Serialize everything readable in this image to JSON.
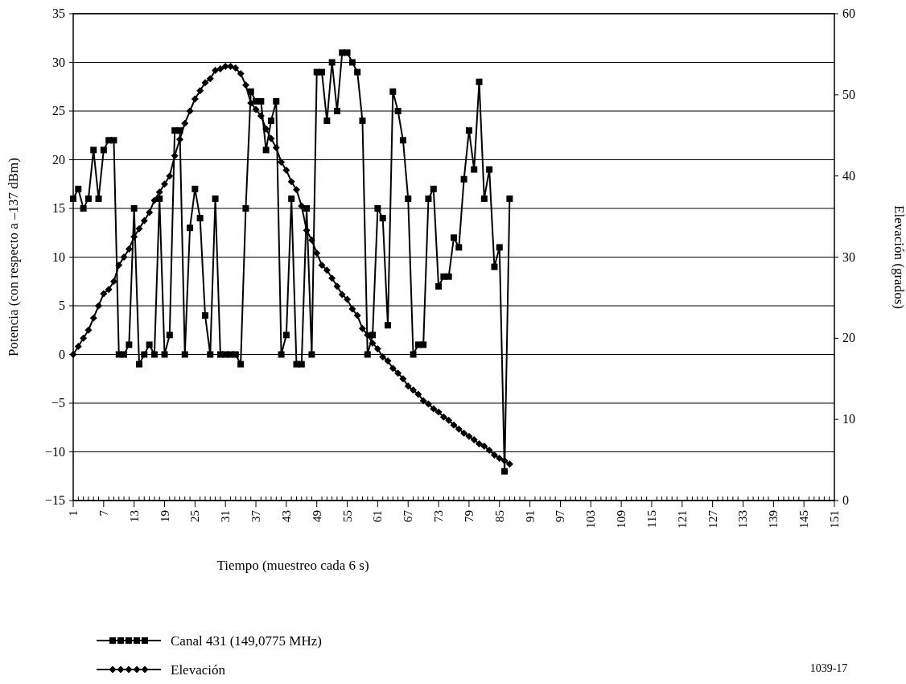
{
  "chart_data": {
    "type": "line",
    "xlabel": "Tiempo (muestreo cada 6 s)",
    "ylabel": "Potencia (con respecto a –137 dBm)",
    "y2label": "Elevación (grados)",
    "x": [
      1,
      2,
      3,
      4,
      5,
      6,
      7,
      8,
      9,
      10,
      11,
      12,
      13,
      14,
      15,
      16,
      17,
      18,
      19,
      20,
      21,
      22,
      23,
      24,
      25,
      26,
      27,
      28,
      29,
      30,
      31,
      32,
      33,
      34,
      35,
      36,
      37,
      38,
      39,
      40,
      41,
      42,
      43,
      44,
      45,
      46,
      47,
      48,
      49,
      50,
      51,
      52,
      53,
      54,
      55,
      56,
      57,
      58,
      59,
      60,
      61,
      62,
      63,
      64,
      65,
      66,
      67,
      68,
      69,
      70,
      71,
      72,
      73,
      74,
      75,
      76,
      77,
      78,
      79,
      80,
      81,
      82,
      83,
      84,
      85,
      86,
      87
    ],
    "series": [
      {
        "name": "Canal 431 (149,0775 MHz)",
        "color": "#000000",
        "marker": "square",
        "values": [
          16,
          17,
          15,
          16,
          21,
          16,
          21,
          22,
          22,
          0,
          0,
          1,
          15,
          -1,
          0,
          1,
          0,
          16,
          0,
          2,
          23,
          23,
          0,
          13,
          17,
          14,
          4,
          0,
          16,
          0,
          0,
          0,
          0,
          -1,
          15,
          27,
          26,
          26,
          21,
          24,
          26,
          0,
          2,
          16,
          -1,
          -1,
          15,
          0,
          29,
          29,
          24,
          30,
          25,
          31,
          31,
          30,
          29,
          24,
          0,
          2,
          15,
          14,
          3,
          27,
          25,
          22,
          16,
          0,
          1,
          1,
          16,
          17,
          7,
          8,
          8,
          12,
          11,
          18,
          23,
          19,
          28,
          16,
          19,
          9,
          11,
          -12,
          16
        ]
      },
      {
        "name": "Elevación",
        "color": "#000000",
        "marker": "diamond",
        "axis": "y2",
        "values": [
          18,
          19,
          20,
          21,
          22.5,
          24,
          25.5,
          26,
          27,
          29,
          30,
          31,
          32.5,
          33.5,
          34.5,
          35.5,
          37,
          38,
          39,
          40,
          42.5,
          44.5,
          46.5,
          48,
          49.5,
          50.5,
          51.5,
          52,
          53,
          53.2,
          53.5,
          53.5,
          53.3,
          52.6,
          51.2,
          49,
          48.2,
          47.4,
          45.8,
          44.6,
          43.5,
          41.7,
          40.7,
          39.3,
          38.3,
          36.3,
          33.3,
          32.1,
          30.5,
          29,
          28.4,
          27.4,
          26.4,
          25.4,
          24.8,
          23.6,
          22.8,
          21.2,
          20.4,
          19.4,
          18.7,
          17.7,
          17.2,
          16.3,
          15.7,
          15,
          14.1,
          13.6,
          13.1,
          12.3,
          11.9,
          11.3,
          10.9,
          10.3,
          9.9,
          9.3,
          8.8,
          8.3,
          7.9,
          7.5,
          7,
          6.7,
          6.2,
          5.6,
          5.2,
          4.9,
          4.5
        ]
      }
    ],
    "xlim": [
      1,
      151
    ],
    "xticks": [
      1,
      {
        "value": 2,
        "label": null
      },
      {
        "value": 3,
        "label": null
      },
      {
        "value": 4,
        "label": null
      },
      {
        "value": 5,
        "label": null
      },
      {
        "value": 6,
        "label": null
      },
      7,
      {
        "value": 8,
        "label": null
      },
      {
        "value": 9,
        "label": null
      },
      {
        "value": 10,
        "label": null
      },
      {
        "value": 11,
        "label": null
      },
      {
        "value": 12,
        "label": null
      },
      13,
      {
        "value": 14,
        "label": null
      },
      {
        "value": 15,
        "label": null
      },
      {
        "value": 16,
        "label": null
      },
      {
        "value": 17,
        "label": null
      },
      {
        "value": 18,
        "label": null
      },
      19,
      {
        "value": 20,
        "label": null
      },
      {
        "value": 21,
        "label": null
      },
      {
        "value": 22,
        "label": null
      },
      {
        "value": 23,
        "label": null
      },
      {
        "value": 24,
        "label": null
      },
      25,
      {
        "value": 26,
        "label": null
      },
      {
        "value": 27,
        "label": null
      },
      {
        "value": 28,
        "label": null
      },
      {
        "value": 29,
        "label": null
      },
      {
        "value": 30,
        "label": null
      },
      31,
      {
        "value": 32,
        "label": null
      },
      {
        "value": 33,
        "label": null
      },
      {
        "value": 34,
        "label": null
      },
      {
        "value": 35,
        "label": null
      },
      {
        "value": 36,
        "label": null
      },
      37,
      {
        "value": 38,
        "label": null
      },
      {
        "value": 39,
        "label": null
      },
      {
        "value": 40,
        "label": null
      },
      {
        "value": 41,
        "label": null
      },
      {
        "value": 42,
        "label": null
      },
      43,
      {
        "value": 44,
        "label": null
      },
      {
        "value": 45,
        "label": null
      },
      {
        "value": 46,
        "label": null
      },
      {
        "value": 47,
        "label": null
      },
      {
        "value": 48,
        "label": null
      },
      49,
      {
        "value": 50,
        "label": null
      },
      {
        "value": 51,
        "label": null
      },
      {
        "value": 52,
        "label": null
      },
      {
        "value": 53,
        "label": null
      },
      {
        "value": 54,
        "label": null
      },
      55,
      {
        "value": 56,
        "label": null
      },
      {
        "value": 57,
        "label": null
      },
      {
        "value": 58,
        "label": null
      },
      {
        "value": 59,
        "label": null
      },
      {
        "value": 60,
        "label": null
      },
      61,
      {
        "value": 62,
        "label": null
      },
      {
        "value": 63,
        "label": null
      },
      {
        "value": 64,
        "label": null
      },
      {
        "value": 65,
        "label": null
      },
      {
        "value": 66,
        "label": null
      },
      67,
      {
        "value": 68,
        "label": null
      },
      {
        "value": 69,
        "label": null
      },
      {
        "value": 70,
        "label": null
      },
      {
        "value": 71,
        "label": null
      },
      {
        "value": 72,
        "label": null
      },
      73,
      {
        "value": 74,
        "label": null
      },
      {
        "value": 75,
        "label": null
      },
      {
        "value": 76,
        "label": null
      },
      {
        "value": 77,
        "label": null
      },
      {
        "value": 78,
        "label": null
      },
      79,
      {
        "value": 80,
        "label": null
      },
      {
        "value": 81,
        "label": null
      },
      {
        "value": 82,
        "label": null
      },
      {
        "value": 83,
        "label": null
      },
      {
        "value": 84,
        "label": null
      },
      85,
      {
        "value": 86,
        "label": null
      },
      {
        "value": 87,
        "label": null
      },
      {
        "value": 88,
        "label": null
      },
      {
        "value": 89,
        "label": null
      },
      {
        "value": 90,
        "label": null
      },
      91,
      {
        "value": 92,
        "label": null
      },
      {
        "value": 93,
        "label": null
      },
      {
        "value": 94,
        "label": null
      },
      {
        "value": 95,
        "label": null
      },
      {
        "value": 96,
        "label": null
      },
      97,
      {
        "value": 98,
        "label": null
      },
      {
        "value": 99,
        "label": null
      },
      {
        "value": 100,
        "label": null
      },
      {
        "value": 101,
        "label": null
      },
      {
        "value": 102,
        "label": null
      },
      103,
      {
        "value": 104,
        "label": null
      },
      {
        "value": 105,
        "label": null
      },
      {
        "value": 106,
        "label": null
      },
      {
        "value": 107,
        "label": null
      },
      {
        "value": 108,
        "label": null
      },
      109,
      {
        "value": 110,
        "label": null
      },
      {
        "value": 111,
        "label": null
      },
      {
        "value": 112,
        "label": null
      },
      {
        "value": 113,
        "label": null
      },
      {
        "value": 114,
        "label": null
      },
      115,
      {
        "value": 116,
        "label": null
      },
      {
        "value": 117,
        "label": null
      },
      {
        "value": 118,
        "label": null
      },
      {
        "value": 119,
        "label": null
      },
      {
        "value": 120,
        "label": null
      },
      121,
      {
        "value": 122,
        "label": null
      },
      {
        "value": 123,
        "label": null
      },
      {
        "value": 124,
        "label": null
      },
      {
        "value": 125,
        "label": null
      },
      {
        "value": 126,
        "label": null
      },
      127,
      {
        "value": 128,
        "label": null
      },
      {
        "value": 129,
        "label": null
      },
      {
        "value": 130,
        "label": null
      },
      {
        "value": 131,
        "label": null
      },
      {
        "value": 132,
        "label": null
      },
      133,
      {
        "value": 134,
        "label": null
      },
      {
        "value": 135,
        "label": null
      },
      {
        "value": 136,
        "label": null
      },
      {
        "value": 137,
        "label": null
      },
      {
        "value": 138,
        "label": null
      },
      139,
      {
        "value": 140,
        "label": null
      },
      {
        "value": 141,
        "label": null
      },
      {
        "value": 142,
        "label": null
      },
      {
        "value": 143,
        "label": null
      },
      {
        "value": 144,
        "label": null
      },
      145,
      {
        "value": 146,
        "label": null
      },
      {
        "value": 147,
        "label": null
      },
      {
        "value": 148,
        "label": null
      },
      {
        "value": 149,
        "label": null
      },
      {
        "value": 150,
        "label": null
      },
      151
    ],
    "ylim": [
      -15,
      35
    ],
    "yticks": [
      -15,
      -10,
      -5,
      0,
      5,
      10,
      15,
      20,
      25,
      30,
      35
    ],
    "y2lim": [
      0,
      60
    ],
    "y2ticks": [
      0,
      10,
      20,
      30,
      40,
      50,
      60
    ],
    "grid": "y",
    "legend": "bottom left",
    "line_style": "solid",
    "annotations": [
      "1039-17"
    ]
  }
}
